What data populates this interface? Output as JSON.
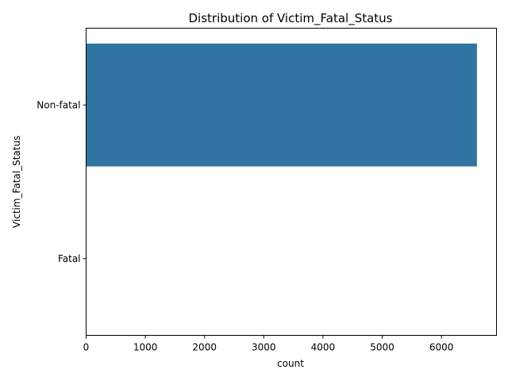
{
  "chart_data": {
    "type": "bar",
    "orientation": "horizontal",
    "title": "Distribution of Victim_Fatal_Status",
    "xlabel": "count",
    "ylabel": "Victim_Fatal_Status",
    "categories": [
      "Non-fatal",
      "Fatal"
    ],
    "values": [
      6600,
      6
    ],
    "xlim": [
      0,
      6930
    ],
    "xticks": [
      0,
      1000,
      2000,
      3000,
      4000,
      5000,
      6000
    ],
    "grid": false,
    "bar_color": "#3274a1"
  }
}
